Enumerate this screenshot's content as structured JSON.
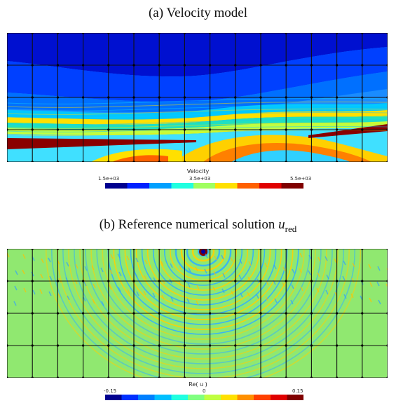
{
  "panel_a": {
    "title": "(a) Velocity model",
    "colorbar": {
      "title": "Velocity",
      "ticks": [
        "1.5e+03",
        "3.5e+03",
        "5.5e+03"
      ],
      "colors": [
        "#00008f",
        "#0020ff",
        "#00a0ff",
        "#20ffe0",
        "#a0ff60",
        "#ffe000",
        "#ff6000",
        "#e00000",
        "#800000"
      ]
    }
  },
  "panel_b": {
    "title": "(b) Reference numerical solution ",
    "math_symbol": "u",
    "math_subscript": "red",
    "colorbar": {
      "title": "Re( u )",
      "ticks": [
        "-0.15",
        "0",
        "0.15"
      ],
      "colors": [
        "#00008f",
        "#0030ff",
        "#0080ff",
        "#00c0ff",
        "#20ffe0",
        "#80ff80",
        "#c0ff40",
        "#ffe000",
        "#ff9000",
        "#ff4000",
        "#e00000",
        "#800000"
      ]
    }
  }
}
